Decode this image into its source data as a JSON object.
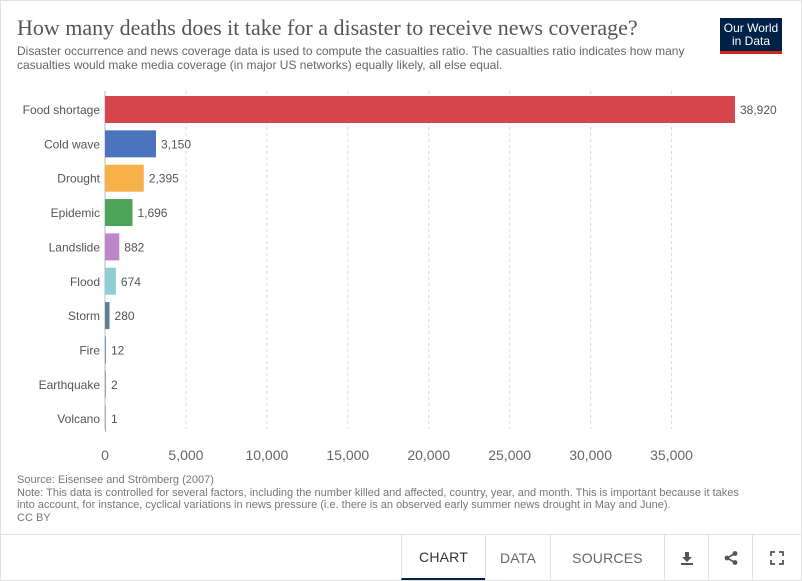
{
  "header": {
    "title": "How many deaths does it take for a disaster to receive news coverage?",
    "subtitle": "Disaster occurrence and news coverage data is used to compute the casualties ratio. The casualties ratio indicates how many casualties would make media coverage (in major US networks) equally likely, all else equal.",
    "logo_line1": "Our World",
    "logo_line2": "in Data"
  },
  "chart_data": {
    "type": "bar",
    "orientation": "horizontal",
    "categories": [
      "Food shortage",
      "Cold wave",
      "Drought",
      "Epidemic",
      "Landslide",
      "Flood",
      "Storm",
      "Fire",
      "Earthquake",
      "Volcano"
    ],
    "values": [
      38920,
      3150,
      2395,
      1696,
      882,
      674,
      280,
      12,
      2,
      1
    ],
    "value_labels": [
      "38,920",
      "3,150",
      "2,395",
      "1,696",
      "882",
      "674",
      "280",
      "12",
      "2",
      "1"
    ],
    "colors": [
      "#d6454c",
      "#4c73bd",
      "#f6b14b",
      "#4aa45a",
      "#be86c8",
      "#8ecfd5",
      "#5f7f93",
      "#6e9bbf",
      "#a0a0a0",
      "#b0b0b0"
    ],
    "xlim": [
      0,
      38920
    ],
    "xticks": [
      0,
      5000,
      10000,
      15000,
      20000,
      25000,
      30000,
      35000
    ],
    "xtick_labels": [
      "0",
      "5,000",
      "10,000",
      "15,000",
      "20,000",
      "25,000",
      "30,000",
      "35,000"
    ],
    "grid": true
  },
  "footer": {
    "source": "Source: Eisensee and Strömberg (2007)",
    "note": "Note: This data is controlled for several factors, including the number killed and affected, country, year, and month. This is important because it takes into account, for instance, cyclical variations in news pressure (i.e. there is an observed early summer news drought in May and June).",
    "license": "CC BY"
  },
  "toolbar": {
    "chart_label": "CHART",
    "data_label": "DATA",
    "sources_label": "SOURCES",
    "icons": [
      "download-icon",
      "share-icon",
      "fullscreen-icon"
    ]
  }
}
